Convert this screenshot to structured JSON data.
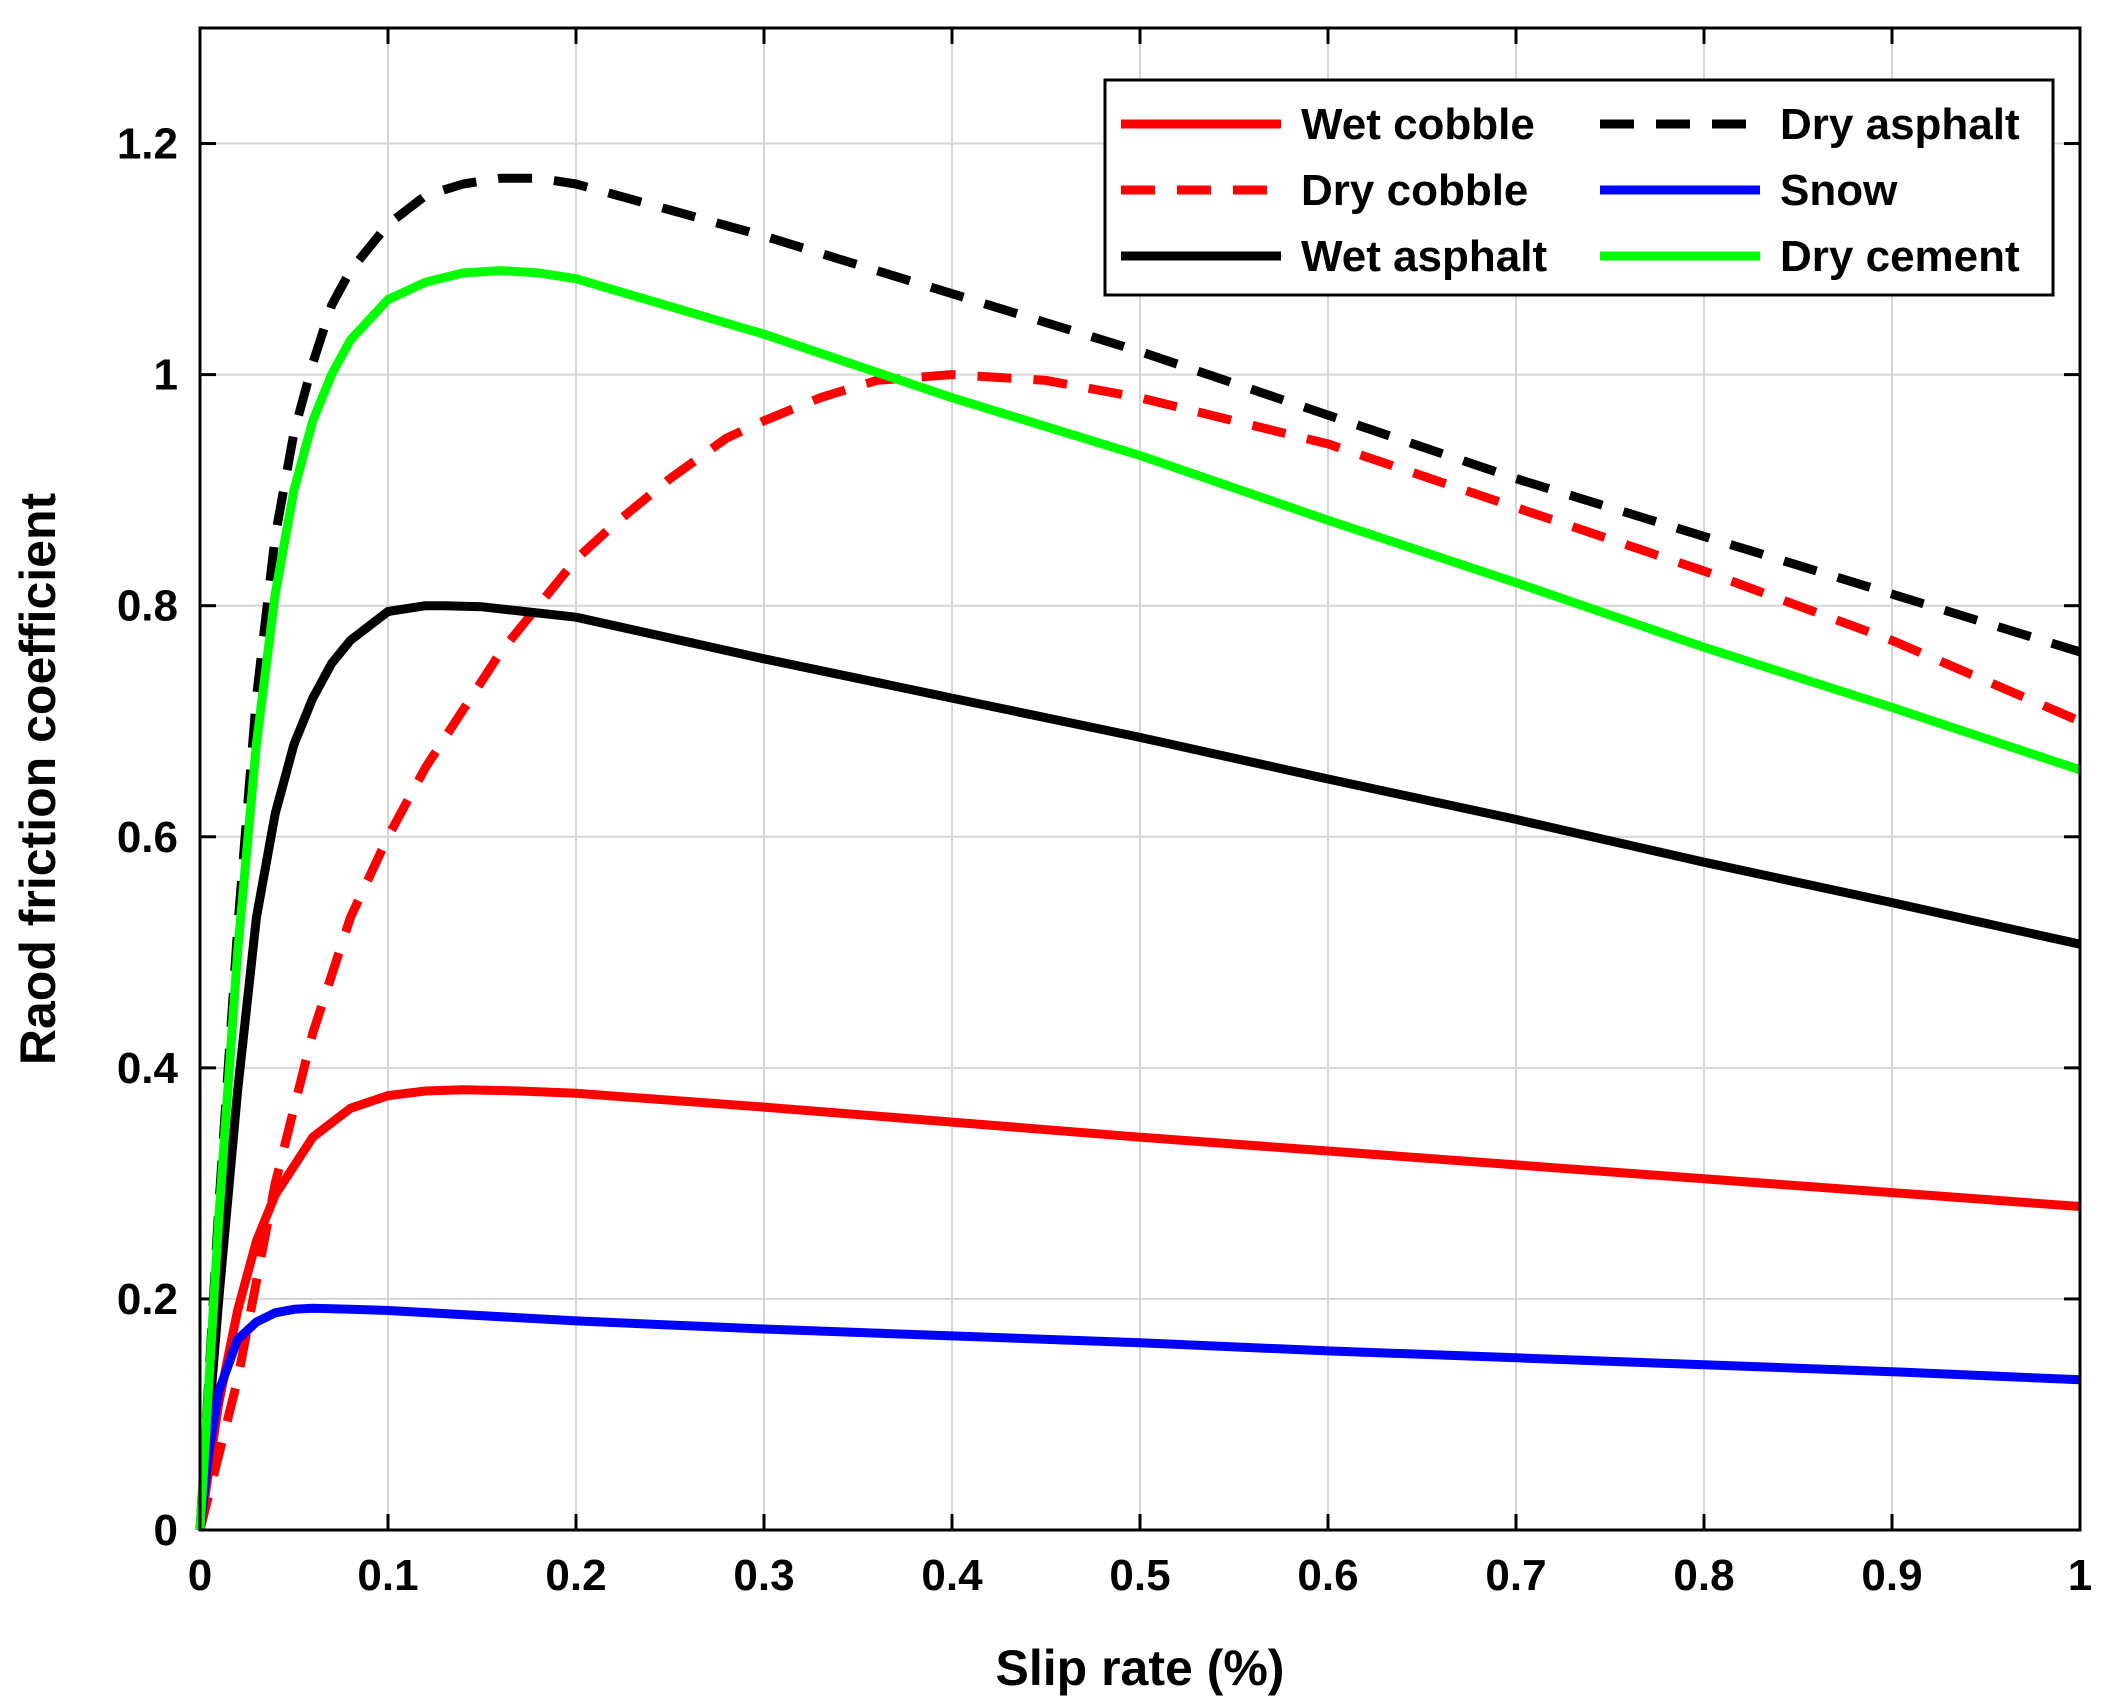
{
  "chart_data": {
    "type": "line",
    "title": "",
    "xlabel": "Slip rate (%)",
    "ylabel": "Raod friction coefficient",
    "xlim": [
      0,
      1
    ],
    "ylim": [
      0,
      1.3
    ],
    "grid": true,
    "legend_position": "top-right",
    "x_ticks": [
      0,
      0.1,
      0.2,
      0.3,
      0.4,
      0.5,
      0.6,
      0.7,
      0.8,
      0.9,
      1
    ],
    "x_tick_labels": [
      "0",
      "0.1",
      "0.2",
      "0.3",
      "0.4",
      "0.5",
      "0.6",
      "0.7",
      "0.8",
      "0.9",
      "1"
    ],
    "y_ticks": [
      0,
      0.2,
      0.4,
      0.6,
      0.8,
      1,
      1.2
    ],
    "y_tick_labels": [
      "0",
      "0.2",
      "0.4",
      "0.6",
      "0.8",
      "1",
      "1.2"
    ],
    "series": [
      {
        "name": "Wet cobble",
        "color": "#ff0000",
        "dash": "solid",
        "x": [
          0,
          0.01,
          0.02,
          0.03,
          0.04,
          0.06,
          0.08,
          0.1,
          0.12,
          0.14,
          0.17,
          0.2,
          0.3,
          0.4,
          0.5,
          0.6,
          0.7,
          0.8,
          0.9,
          1
        ],
        "y": [
          0,
          0.11,
          0.19,
          0.25,
          0.29,
          0.34,
          0.365,
          0.376,
          0.38,
          0.381,
          0.38,
          0.378,
          0.366,
          0.353,
          0.34,
          0.328,
          0.316,
          0.304,
          0.292,
          0.28
        ]
      },
      {
        "name": "Dry cobble",
        "color": "#ff0000",
        "dash": "dashed",
        "x": [
          0,
          0.02,
          0.04,
          0.06,
          0.08,
          0.1,
          0.12,
          0.14,
          0.16,
          0.18,
          0.2,
          0.22,
          0.25,
          0.28,
          0.3,
          0.33,
          0.36,
          0.4,
          0.45,
          0.5,
          0.6,
          0.7,
          0.8,
          0.9,
          1
        ],
        "y": [
          0,
          0.13,
          0.3,
          0.43,
          0.53,
          0.6,
          0.66,
          0.71,
          0.76,
          0.8,
          0.84,
          0.87,
          0.91,
          0.945,
          0.96,
          0.98,
          0.995,
          1.0,
          0.995,
          0.98,
          0.94,
          0.885,
          0.83,
          0.77,
          0.7
        ]
      },
      {
        "name": "Wet asphalt",
        "color": "#000000",
        "dash": "solid",
        "x": [
          0,
          0.01,
          0.02,
          0.03,
          0.04,
          0.05,
          0.06,
          0.07,
          0.08,
          0.1,
          0.12,
          0.13,
          0.15,
          0.2,
          0.3,
          0.4,
          0.5,
          0.6,
          0.7,
          0.8,
          0.9,
          1
        ],
        "y": [
          0,
          0.2,
          0.38,
          0.53,
          0.62,
          0.68,
          0.72,
          0.75,
          0.77,
          0.795,
          0.8,
          0.8,
          0.799,
          0.79,
          0.754,
          0.72,
          0.686,
          0.65,
          0.615,
          0.578,
          0.543,
          0.507
        ]
      },
      {
        "name": "Dry asphalt",
        "color": "#000000",
        "dash": "dashed",
        "x": [
          0,
          0.01,
          0.02,
          0.03,
          0.04,
          0.05,
          0.06,
          0.07,
          0.08,
          0.1,
          0.12,
          0.14,
          0.16,
          0.18,
          0.2,
          0.3,
          0.4,
          0.5,
          0.6,
          0.7,
          0.8,
          0.9,
          1
        ],
        "y": [
          0,
          0.28,
          0.52,
          0.72,
          0.86,
          0.95,
          1.01,
          1.06,
          1.09,
          1.13,
          1.155,
          1.165,
          1.17,
          1.17,
          1.165,
          1.12,
          1.07,
          1.02,
          0.965,
          0.91,
          0.86,
          0.81,
          0.76
        ]
      },
      {
        "name": "Snow",
        "color": "#0000ff",
        "dash": "solid",
        "x": [
          0,
          0.005,
          0.01,
          0.02,
          0.03,
          0.04,
          0.05,
          0.06,
          0.08,
          0.1,
          0.2,
          0.3,
          0.4,
          0.5,
          0.6,
          0.7,
          0.8,
          0.9,
          1
        ],
        "y": [
          0,
          0.07,
          0.12,
          0.165,
          0.18,
          0.188,
          0.191,
          0.192,
          0.191,
          0.19,
          0.181,
          0.174,
          0.168,
          0.162,
          0.155,
          0.149,
          0.143,
          0.137,
          0.13
        ]
      },
      {
        "name": "Dry cement",
        "color": "#00ff00",
        "dash": "solid",
        "x": [
          0,
          0.01,
          0.02,
          0.03,
          0.04,
          0.05,
          0.06,
          0.07,
          0.08,
          0.1,
          0.12,
          0.14,
          0.16,
          0.18,
          0.2,
          0.3,
          0.4,
          0.5,
          0.6,
          0.7,
          0.8,
          0.9,
          1
        ],
        "y": [
          0,
          0.27,
          0.5,
          0.68,
          0.81,
          0.9,
          0.96,
          1.0,
          1.03,
          1.065,
          1.08,
          1.088,
          1.09,
          1.088,
          1.083,
          1.035,
          0.98,
          0.93,
          0.874,
          0.82,
          0.764,
          0.712,
          0.658
        ]
      }
    ]
  }
}
